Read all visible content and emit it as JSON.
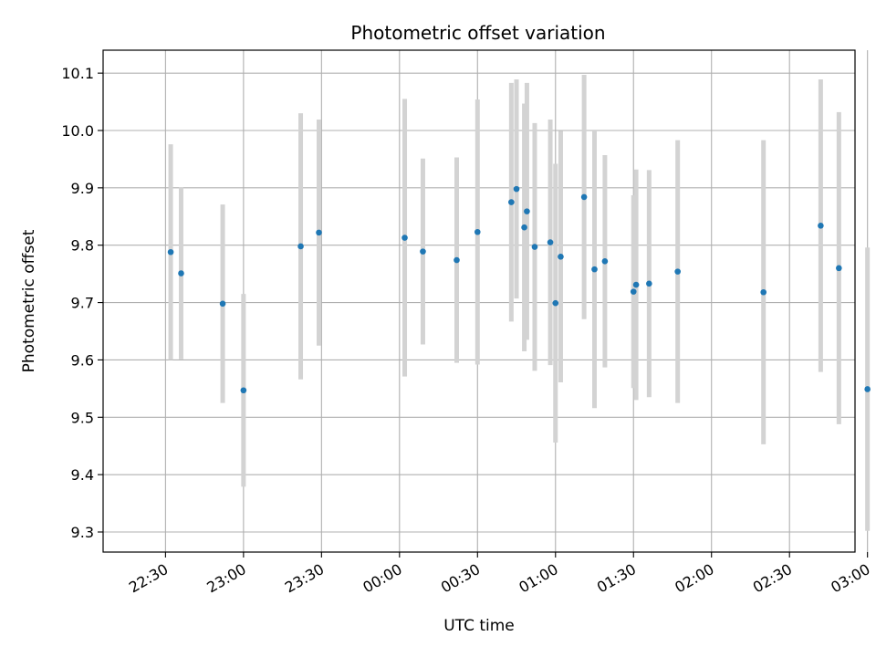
{
  "chart_data": {
    "type": "scatter",
    "title": "Photometric offset variation",
    "xlabel": "UTC time",
    "ylabel": "Photometric offset",
    "grid": true,
    "legend": "none",
    "x_ticks": [
      "22:30",
      "23:00",
      "23:30",
      "00:00",
      "00:30",
      "01:00",
      "01:30",
      "02:00",
      "02:30",
      "03:00"
    ],
    "x_tick_hours": [
      22.5,
      23.0,
      23.5,
      24.0,
      24.5,
      25.0,
      25.5,
      26.0,
      26.5,
      27.0
    ],
    "xlim_hours": [
      22.1,
      26.92
    ],
    "y_ticks": [
      9.3,
      9.4,
      9.5,
      9.6,
      9.7,
      9.8,
      9.9,
      10.0,
      10.1
    ],
    "ylim": [
      9.265,
      10.14
    ],
    "colors": {
      "marker": "#1f77b4",
      "errorbar": "#d3d3d3",
      "grid": "#b0b0b0"
    },
    "points": [
      {
        "time": "22:32",
        "y": 9.788,
        "err": 0.188
      },
      {
        "time": "22:36",
        "y": 9.751,
        "err": 0.15
      },
      {
        "time": "22:52",
        "y": 9.698,
        "err": 0.173
      },
      {
        "time": "23:00",
        "y": 9.547,
        "err": 0.168
      },
      {
        "time": "23:22",
        "y": 9.798,
        "err": 0.232
      },
      {
        "time": "23:29",
        "y": 9.822,
        "err": 0.197
      },
      {
        "time": "00:02",
        "y": 9.813,
        "err": 0.242
      },
      {
        "time": "00:09",
        "y": 9.789,
        "err": 0.162
      },
      {
        "time": "00:22",
        "y": 9.774,
        "err": 0.179
      },
      {
        "time": "00:30",
        "y": 9.823,
        "err": 0.231
      },
      {
        "time": "00:43",
        "y": 9.875,
        "err": 0.208
      },
      {
        "time": "00:45",
        "y": 9.898,
        "err": 0.191
      },
      {
        "time": "00:48",
        "y": 9.831,
        "err": 0.216
      },
      {
        "time": "00:49",
        "y": 9.859,
        "err": 0.224
      },
      {
        "time": "00:52",
        "y": 9.797,
        "err": 0.216
      },
      {
        "time": "00:58",
        "y": 9.805,
        "err": 0.214
      },
      {
        "time": "01:00",
        "y": 9.699,
        "err": 0.243
      },
      {
        "time": "01:02",
        "y": 9.78,
        "err": 0.219
      },
      {
        "time": "01:11",
        "y": 9.884,
        "err": 0.213
      },
      {
        "time": "01:15",
        "y": 9.758,
        "err": 0.242
      },
      {
        "time": "01:19",
        "y": 9.772,
        "err": 0.185
      },
      {
        "time": "01:30",
        "y": 9.719,
        "err": 0.168
      },
      {
        "time": "01:31",
        "y": 9.731,
        "err": 0.201
      },
      {
        "time": "01:36",
        "y": 9.733,
        "err": 0.198
      },
      {
        "time": "01:47",
        "y": 9.754,
        "err": 0.229
      },
      {
        "time": "02:20",
        "y": 9.718,
        "err": 0.265
      },
      {
        "time": "02:42",
        "y": 9.834,
        "err": 0.255
      },
      {
        "time": "02:49",
        "y": 9.76,
        "err": 0.272
      },
      {
        "time": "03:00",
        "y": 9.549,
        "err": 0.247
      }
    ]
  }
}
